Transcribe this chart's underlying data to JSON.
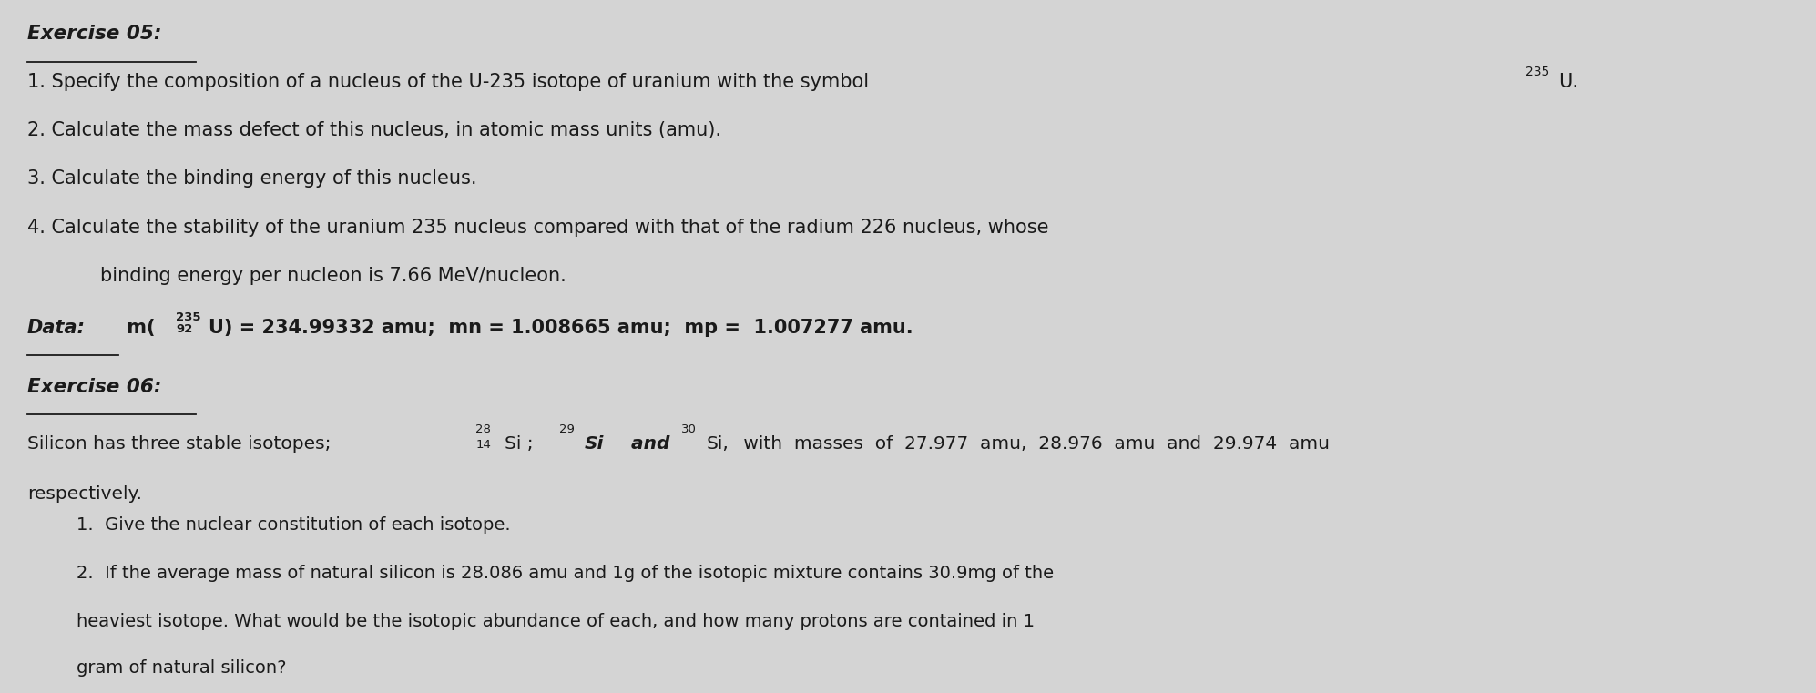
{
  "bg_color": "#d4d4d4",
  "text_color": "#1a1a1a",
  "exercise05_title": "Exercise 05:",
  "exercise06_title": "Exercise 06:",
  "line1_base": "1. Specify the composition of a nucleus of the U-235 isotope of uranium with the symbol ",
  "line1_sup": "235",
  "line1_end": "U.",
  "line2": "2. Calculate the mass defect of this nucleus, in atomic mass units (amu).",
  "line3": "3. Calculate the binding energy of this nucleus.",
  "line4": "4. Calculate the stability of the uranium 235 nucleus compared with that of the radium 226 nucleus, whose",
  "line4b": "binding energy per nucleon is 7.66 MeV/nucleon.",
  "data_prefix": "Data:",
  "data_rest": " m(",
  "data_sup": "235",
  "data_sub": "92",
  "data_end": "U) = 234.99332 amu;  mn = 1.008665 amu;  mp =  1.007277 amu.",
  "silicon_base": "Silicon has three stable isotopes;",
  "silicon_end": " with  masses  of  27.977  amu,  28.976  amu  and  29.974  amu",
  "silicon_resp": "respectively.",
  "sub1": "1.  Give the nuclear constitution of each isotope.",
  "sub2a": "2.  If the average mass of natural silicon is 28.086 amu and 1g of the isotopic mixture contains 30.9mg of the",
  "sub2b": "heaviest isotope. What would be the isotopic abundance of each, and how many protons are contained in 1",
  "sub2c": "gram of natural silicon?"
}
